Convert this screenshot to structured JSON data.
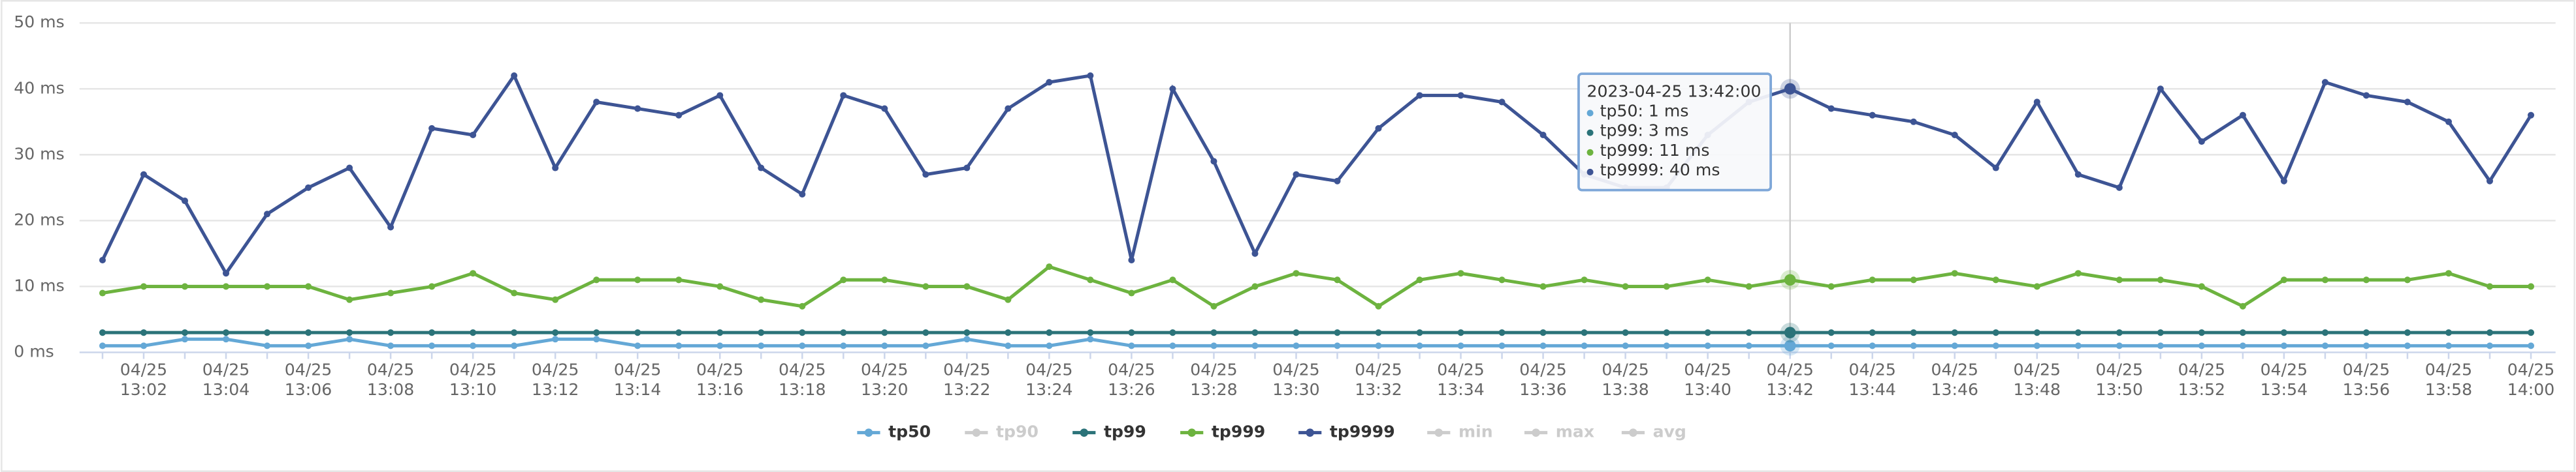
{
  "chart_data": {
    "type": "line",
    "categories": [
      null,
      "04/25\n13:02",
      null,
      "04/25\n13:04",
      null,
      "04/25\n13:06",
      null,
      "04/25\n13:08",
      null,
      "04/25\n13:10",
      null,
      "04/25\n13:12",
      null,
      "04/25\n13:14",
      null,
      "04/25\n13:16",
      null,
      "04/25\n13:18",
      null,
      "04/25\n13:20",
      null,
      "04/25\n13:22",
      null,
      "04/25\n13:24",
      null,
      "04/25\n13:26",
      null,
      "04/25\n13:28",
      null,
      "04/25\n13:30",
      null,
      "04/25\n13:32",
      null,
      "04/25\n13:34",
      null,
      "04/25\n13:36",
      null,
      "04/25\n13:38",
      null,
      "04/25\n13:40",
      null,
      "04/25\n13:42",
      null,
      "04/25\n13:44",
      null,
      "04/25\n13:46",
      null,
      "04/25\n13:48",
      null,
      "04/25\n13:50",
      null,
      "04/25\n13:52",
      null,
      "04/25\n13:54",
      null,
      "04/25\n13:56",
      null,
      "04/25\n13:58",
      null,
      "04/25\n14:00"
    ],
    "series": [
      {
        "name": "tp50",
        "color": "#64a8d6",
        "values": [
          1,
          1,
          2,
          2,
          1,
          1,
          2,
          1,
          1,
          1,
          1,
          2,
          2,
          1,
          1,
          1,
          1,
          1,
          1,
          1,
          1,
          2,
          1,
          1,
          2,
          1,
          1,
          1,
          1,
          1,
          1,
          1,
          1,
          1,
          1,
          1,
          1,
          1,
          1,
          1,
          1,
          1,
          1,
          1,
          1,
          1,
          1,
          1,
          1,
          1,
          1,
          1,
          1,
          1,
          1,
          1,
          1,
          1,
          1,
          1
        ]
      },
      {
        "name": "tp99",
        "color": "#2b7379",
        "values": [
          3,
          3,
          3,
          3,
          3,
          3,
          3,
          3,
          3,
          3,
          3,
          3,
          3,
          3,
          3,
          3,
          3,
          3,
          3,
          3,
          3,
          3,
          3,
          3,
          3,
          3,
          3,
          3,
          3,
          3,
          3,
          3,
          3,
          3,
          3,
          3,
          3,
          3,
          3,
          3,
          3,
          3,
          3,
          3,
          3,
          3,
          3,
          3,
          3,
          3,
          3,
          3,
          3,
          3,
          3,
          3,
          3,
          3,
          3,
          3
        ]
      },
      {
        "name": "tp999",
        "color": "#6db33f",
        "values": [
          9,
          10,
          10,
          10,
          10,
          10,
          8,
          9,
          10,
          12,
          9,
          8,
          11,
          11,
          11,
          10,
          8,
          7,
          11,
          11,
          10,
          10,
          8,
          13,
          11,
          9,
          11,
          7,
          10,
          12,
          11,
          7,
          11,
          12,
          11,
          10,
          11,
          10,
          10,
          11,
          10,
          11,
          10,
          11,
          11,
          12,
          11,
          10,
          12,
          11,
          11,
          10,
          7,
          11,
          11,
          11,
          11,
          12,
          10,
          10
        ]
      },
      {
        "name": "tp9999",
        "color": "#3d5494",
        "values": [
          14,
          27,
          23,
          12,
          21,
          25,
          28,
          19,
          34,
          33,
          42,
          28,
          38,
          37,
          36,
          39,
          28,
          24,
          39,
          37,
          27,
          28,
          37,
          41,
          42,
          14,
          40,
          29,
          15,
          27,
          26,
          34,
          39,
          39,
          38,
          33,
          27,
          25,
          25,
          33,
          38,
          40,
          37,
          36,
          35,
          33,
          28,
          38,
          27,
          25,
          40,
          32,
          36,
          26,
          41,
          39,
          38,
          35,
          26,
          36
        ]
      }
    ],
    "hidden_series": [
      "tp90",
      "min",
      "max",
      "avg"
    ],
    "legend_order": [
      "tp50",
      "tp90",
      "tp99",
      "tp999",
      "tp9999",
      "min",
      "max",
      "avg"
    ],
    "ylim": [
      0,
      50
    ],
    "yticks": [
      {
        "value": 0,
        "label": "0 ms"
      },
      {
        "value": 10,
        "label": "10 ms"
      },
      {
        "value": 20,
        "label": "20 ms"
      },
      {
        "value": 30,
        "label": "30 ms"
      },
      {
        "value": 40,
        "label": "40 ms"
      },
      {
        "value": 50,
        "label": "50 ms"
      }
    ],
    "grid": true,
    "legend_position": "bottom",
    "tooltip": {
      "index": 41,
      "title": "2023-04-25 13:42:00",
      "lines": [
        "tp50: 1 ms",
        "tp99: 3 ms",
        "tp999: 11 ms",
        "tp9999: 40 ms"
      ]
    }
  }
}
